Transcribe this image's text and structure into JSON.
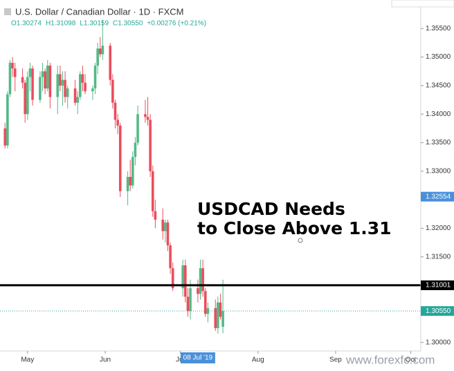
{
  "chart_data": {
    "type": "candlestick",
    "title": "U.S. Dollar / Canadian Dollar · 1D · FXCM",
    "ohlc_readout": [
      "O1.30274",
      "H1.31098",
      "L1.30159",
      "C1.30550",
      "+0.00276 (+0.21%)"
    ],
    "annotation": [
      "USDCAD Needs",
      "to Close Above 1.31"
    ],
    "watermark": "www.forexfc.com",
    "up_color": "#53b987",
    "down_color": "#eb4d5c",
    "x": [
      "2019-04-22",
      "2019-04-23",
      "2019-04-24",
      "2019-04-25",
      "2019-04-26",
      "2019-04-29",
      "2019-04-30",
      "2019-05-01",
      "2019-05-02",
      "2019-05-03",
      "2019-05-06",
      "2019-05-07",
      "2019-05-08",
      "2019-05-09",
      "2019-05-10",
      "2019-05-13",
      "2019-05-14",
      "2019-05-15",
      "2019-05-16",
      "2019-05-17",
      "2019-05-20",
      "2019-05-21",
      "2019-05-22",
      "2019-05-23",
      "2019-05-24",
      "2019-05-27",
      "2019-05-28",
      "2019-05-29",
      "2019-05-30",
      "2019-05-31",
      "2019-06-03",
      "2019-06-04",
      "2019-06-05",
      "2019-06-06",
      "2019-06-07",
      "2019-06-10",
      "2019-06-11",
      "2019-06-12",
      "2019-06-13",
      "2019-06-14",
      "2019-06-17",
      "2019-06-18",
      "2019-06-19",
      "2019-06-20",
      "2019-06-21",
      "2019-06-24",
      "2019-06-25",
      "2019-06-26",
      "2019-06-27",
      "2019-06-28",
      "2019-07-02",
      "2019-07-03",
      "2019-07-04",
      "2019-07-05",
      "2019-07-08",
      "2019-07-09",
      "2019-07-10",
      "2019-07-11",
      "2019-07-12",
      "2019-07-15",
      "2019-07-16",
      "2019-07-17",
      "2019-07-18"
    ],
    "open": [
      1.3375,
      1.3345,
      1.3435,
      1.349,
      1.348,
      1.3465,
      1.3455,
      1.34,
      1.3465,
      1.348,
      1.3425,
      1.3465,
      1.3475,
      1.3445,
      1.3485,
      1.343,
      1.347,
      1.345,
      1.346,
      1.343,
      1.3445,
      1.342,
      1.343,
      1.347,
      1.3455,
      1.344,
      1.3445,
      1.3485,
      1.3515,
      1.3505,
      1.352,
      1.346,
      1.342,
      1.339,
      1.338,
      1.3265,
      1.329,
      1.3275,
      1.3325,
      1.335,
      1.34,
      1.3395,
      1.339,
      1.33,
      1.323,
      1.3215,
      1.3195,
      1.321,
      1.317,
      1.313,
      1.3095,
      1.3135,
      1.308,
      1.3055,
      1.3095,
      1.3085,
      1.313,
      1.309,
      1.305,
      1.306,
      1.3025,
      1.307,
      1.30274
    ],
    "high": [
      1.3385,
      1.344,
      1.3495,
      1.35,
      1.349,
      1.348,
      1.346,
      1.3475,
      1.349,
      1.3485,
      1.3475,
      1.349,
      1.348,
      1.3495,
      1.349,
      1.3485,
      1.3485,
      1.3475,
      1.3475,
      1.345,
      1.346,
      1.344,
      1.3475,
      1.3485,
      1.347,
      1.345,
      1.349,
      1.3525,
      1.3535,
      1.3565,
      1.3525,
      1.347,
      1.3425,
      1.34,
      1.3385,
      1.33,
      1.332,
      1.3335,
      1.336,
      1.3415,
      1.3425,
      1.343,
      1.34,
      1.331,
      1.325,
      1.3235,
      1.3215,
      1.3215,
      1.3175,
      1.314,
      1.3145,
      1.3145,
      1.3095,
      1.311,
      1.311,
      1.3145,
      1.3145,
      1.3095,
      1.307,
      1.3075,
      1.308,
      1.3085,
      1.31098
    ],
    "low": [
      1.334,
      1.334,
      1.343,
      1.3465,
      1.344,
      1.3445,
      1.3385,
      1.339,
      1.344,
      1.3415,
      1.342,
      1.344,
      1.3435,
      1.344,
      1.341,
      1.34,
      1.344,
      1.3415,
      1.342,
      1.341,
      1.3415,
      1.34,
      1.3425,
      1.344,
      1.3435,
      1.3425,
      1.3435,
      1.347,
      1.35,
      1.3495,
      1.345,
      1.341,
      1.3375,
      1.3365,
      1.3255,
      1.324,
      1.3265,
      1.327,
      1.331,
      1.3345,
      1.3385,
      1.338,
      1.329,
      1.322,
      1.32,
      1.318,
      1.3175,
      1.316,
      1.312,
      1.309,
      1.308,
      1.307,
      1.3045,
      1.304,
      1.307,
      1.3075,
      1.308,
      1.3045,
      1.3035,
      1.302,
      1.3015,
      1.304,
      1.30159
    ],
    "close": [
      1.3345,
      1.3435,
      1.349,
      1.348,
      1.3465,
      1.3455,
      1.34,
      1.3465,
      1.348,
      1.3425,
      1.3465,
      1.3475,
      1.3445,
      1.3485,
      1.343,
      1.347,
      1.345,
      1.346,
      1.343,
      1.3445,
      1.342,
      1.343,
      1.347,
      1.3455,
      1.344,
      1.3445,
      1.3485,
      1.3515,
      1.3505,
      1.352,
      1.346,
      1.342,
      1.339,
      1.338,
      1.3265,
      1.329,
      1.3275,
      1.3325,
      1.335,
      1.34,
      1.3395,
      1.339,
      1.33,
      1.323,
      1.3215,
      1.3195,
      1.321,
      1.317,
      1.313,
      1.3095,
      1.3135,
      1.308,
      1.3055,
      1.3095,
      1.3085,
      1.313,
      1.309,
      1.305,
      1.306,
      1.3025,
      1.307,
      1.3045,
      1.3055
    ],
    "xlim": [
      "2019-04-20",
      "2019-10-05"
    ],
    "xticks": [
      {
        "value": "2019-05-01",
        "label": "May"
      },
      {
        "value": "2019-06-01",
        "label": "Jun"
      },
      {
        "value": "2019-07-01",
        "label": "Jul"
      },
      {
        "value": "2019-08-01",
        "label": "Aug"
      },
      {
        "value": "2019-09-01",
        "label": "Sep"
      },
      {
        "value": "2019-10-01",
        "label": "Oct"
      }
    ],
    "x_cursor": {
      "value": "2019-07-08",
      "label": "08 Jul '19"
    },
    "ylim": [
      1.2985,
      1.36
    ],
    "yticks": [
      {
        "value": 1.3,
        "label": "1.30000"
      },
      {
        "value": 1.305,
        "label": "1.30500"
      },
      {
        "value": 1.31,
        "label": "1.31000"
      },
      {
        "value": 1.315,
        "label": "1.31500"
      },
      {
        "value": 1.32,
        "label": "1.32000"
      },
      {
        "value": 1.325,
        "label": "1.32500"
      },
      {
        "value": 1.33,
        "label": "1.33000"
      },
      {
        "value": 1.335,
        "label": "1.33500"
      },
      {
        "value": 1.34,
        "label": "1.34000"
      },
      {
        "value": 1.345,
        "label": "1.34500"
      },
      {
        "value": 1.35,
        "label": "1.35000"
      },
      {
        "value": 1.355,
        "label": "1.35500"
      }
    ],
    "y_cursor": {
      "value": 1.32554,
      "label": "1.32554",
      "color": "#4a90d9"
    },
    "lines": [
      {
        "value": 1.31001,
        "label": "1.31001",
        "color": "#000000",
        "dashed": false
      },
      {
        "value": 1.3055,
        "label": "1.30550",
        "color": "#26a69a",
        "dashed": true
      }
    ]
  }
}
